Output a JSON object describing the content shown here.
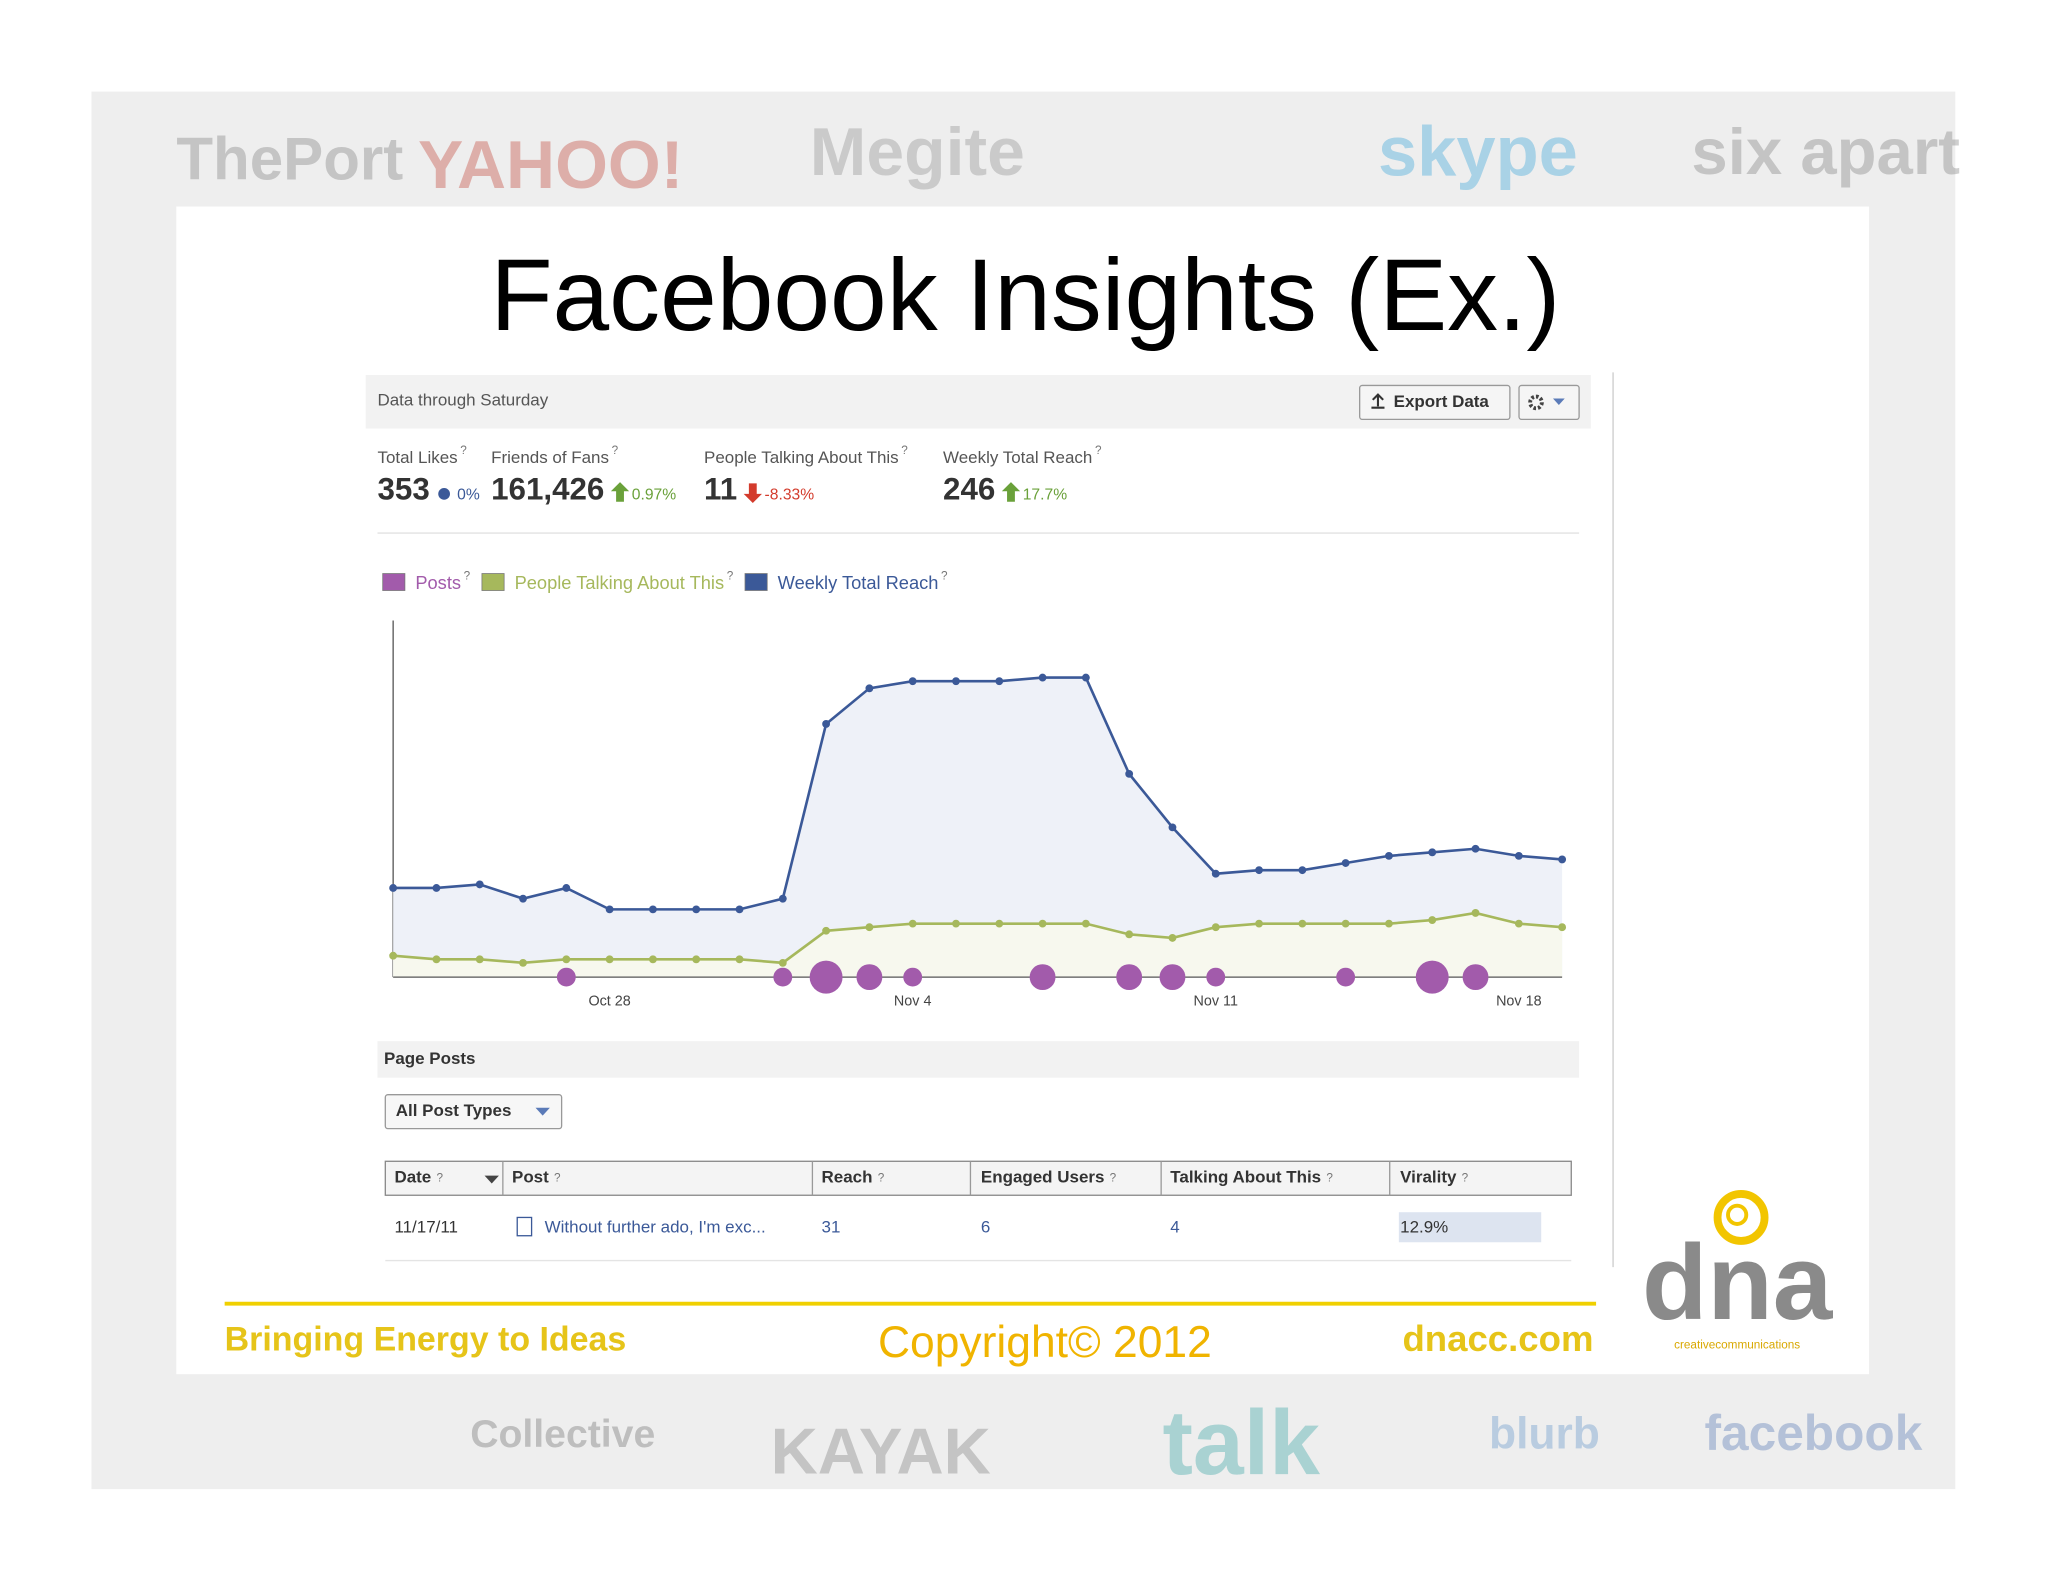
{
  "slide": {
    "title": "Facebook Insights (Ex.)",
    "background_logos": [
      "ThePort",
      "YAHOO!",
      "Megite",
      "skype",
      "six apart",
      "Collective",
      "KAYAK",
      "talk",
      "blurb",
      "facebook"
    ],
    "footer": {
      "tagline": "Bringing Energy to Ideas",
      "copyright": "Copyright© 2012",
      "website": "dnacc.com"
    },
    "logo": {
      "name": "dna",
      "subtitle": "creativecommunications"
    }
  },
  "insights": {
    "header": "Data through Saturday",
    "export_button": "Export Data",
    "help_mark": "?",
    "stats": [
      {
        "label": "Total Likes",
        "value": "353",
        "change": "0%",
        "trend": "flat"
      },
      {
        "label": "Friends of Fans",
        "value": "161,426",
        "change": "0.97%",
        "trend": "up"
      },
      {
        "label": "People Talking About This",
        "value": "11",
        "change": "-8.33%",
        "trend": "down"
      },
      {
        "label": "Weekly Total Reach",
        "value": "246",
        "change": "17.7%",
        "trend": "up"
      }
    ],
    "page_posts": {
      "title": "Page Posts",
      "filter": "All Post Types",
      "table": {
        "columns": [
          "Date",
          "Post",
          "Reach",
          "Engaged Users",
          "Talking About This",
          "Virality"
        ],
        "rows": [
          [
            "11/17/11",
            "Without further ado, I'm exc...",
            "31",
            "6",
            "4",
            "12.9%"
          ]
        ]
      }
    }
  },
  "chart_data": {
    "type": "line",
    "categories": [
      null,
      null,
      null,
      null,
      null,
      "Oct 28",
      null,
      null,
      null,
      null,
      null,
      null,
      "Nov 4",
      null,
      null,
      null,
      null,
      null,
      null,
      "Nov 11",
      null,
      null,
      null,
      null,
      null,
      null,
      "Nov 18",
      null
    ],
    "ylim": [
      0,
      100
    ],
    "series": [
      {
        "name": "Posts",
        "color": "#a25bab",
        "style": "bubble",
        "values": [
          null,
          null,
          null,
          null,
          1,
          null,
          null,
          null,
          null,
          1,
          3,
          2,
          1,
          null,
          null,
          2,
          null,
          2,
          2,
          1,
          null,
          null,
          1,
          null,
          3,
          2,
          null,
          null
        ]
      },
      {
        "name": "People Talking About This",
        "color": "#a6b85c",
        "style": "area",
        "fill": "#f7f8ee",
        "values": [
          6,
          5,
          5,
          4,
          5,
          5,
          5,
          5,
          5,
          4,
          13,
          14,
          15,
          15,
          15,
          15,
          15,
          12,
          11,
          14,
          15,
          15,
          15,
          15,
          16,
          18,
          15,
          14
        ]
      },
      {
        "name": "Weekly Total Reach",
        "color": "#3b5998",
        "style": "area",
        "fill": "#eef1f8",
        "values": [
          25,
          25,
          26,
          22,
          25,
          19,
          19,
          19,
          19,
          22,
          71,
          81,
          83,
          83,
          83,
          84,
          84,
          57,
          42,
          29,
          30,
          30,
          32,
          34,
          35,
          36,
          34,
          33
        ]
      }
    ]
  }
}
